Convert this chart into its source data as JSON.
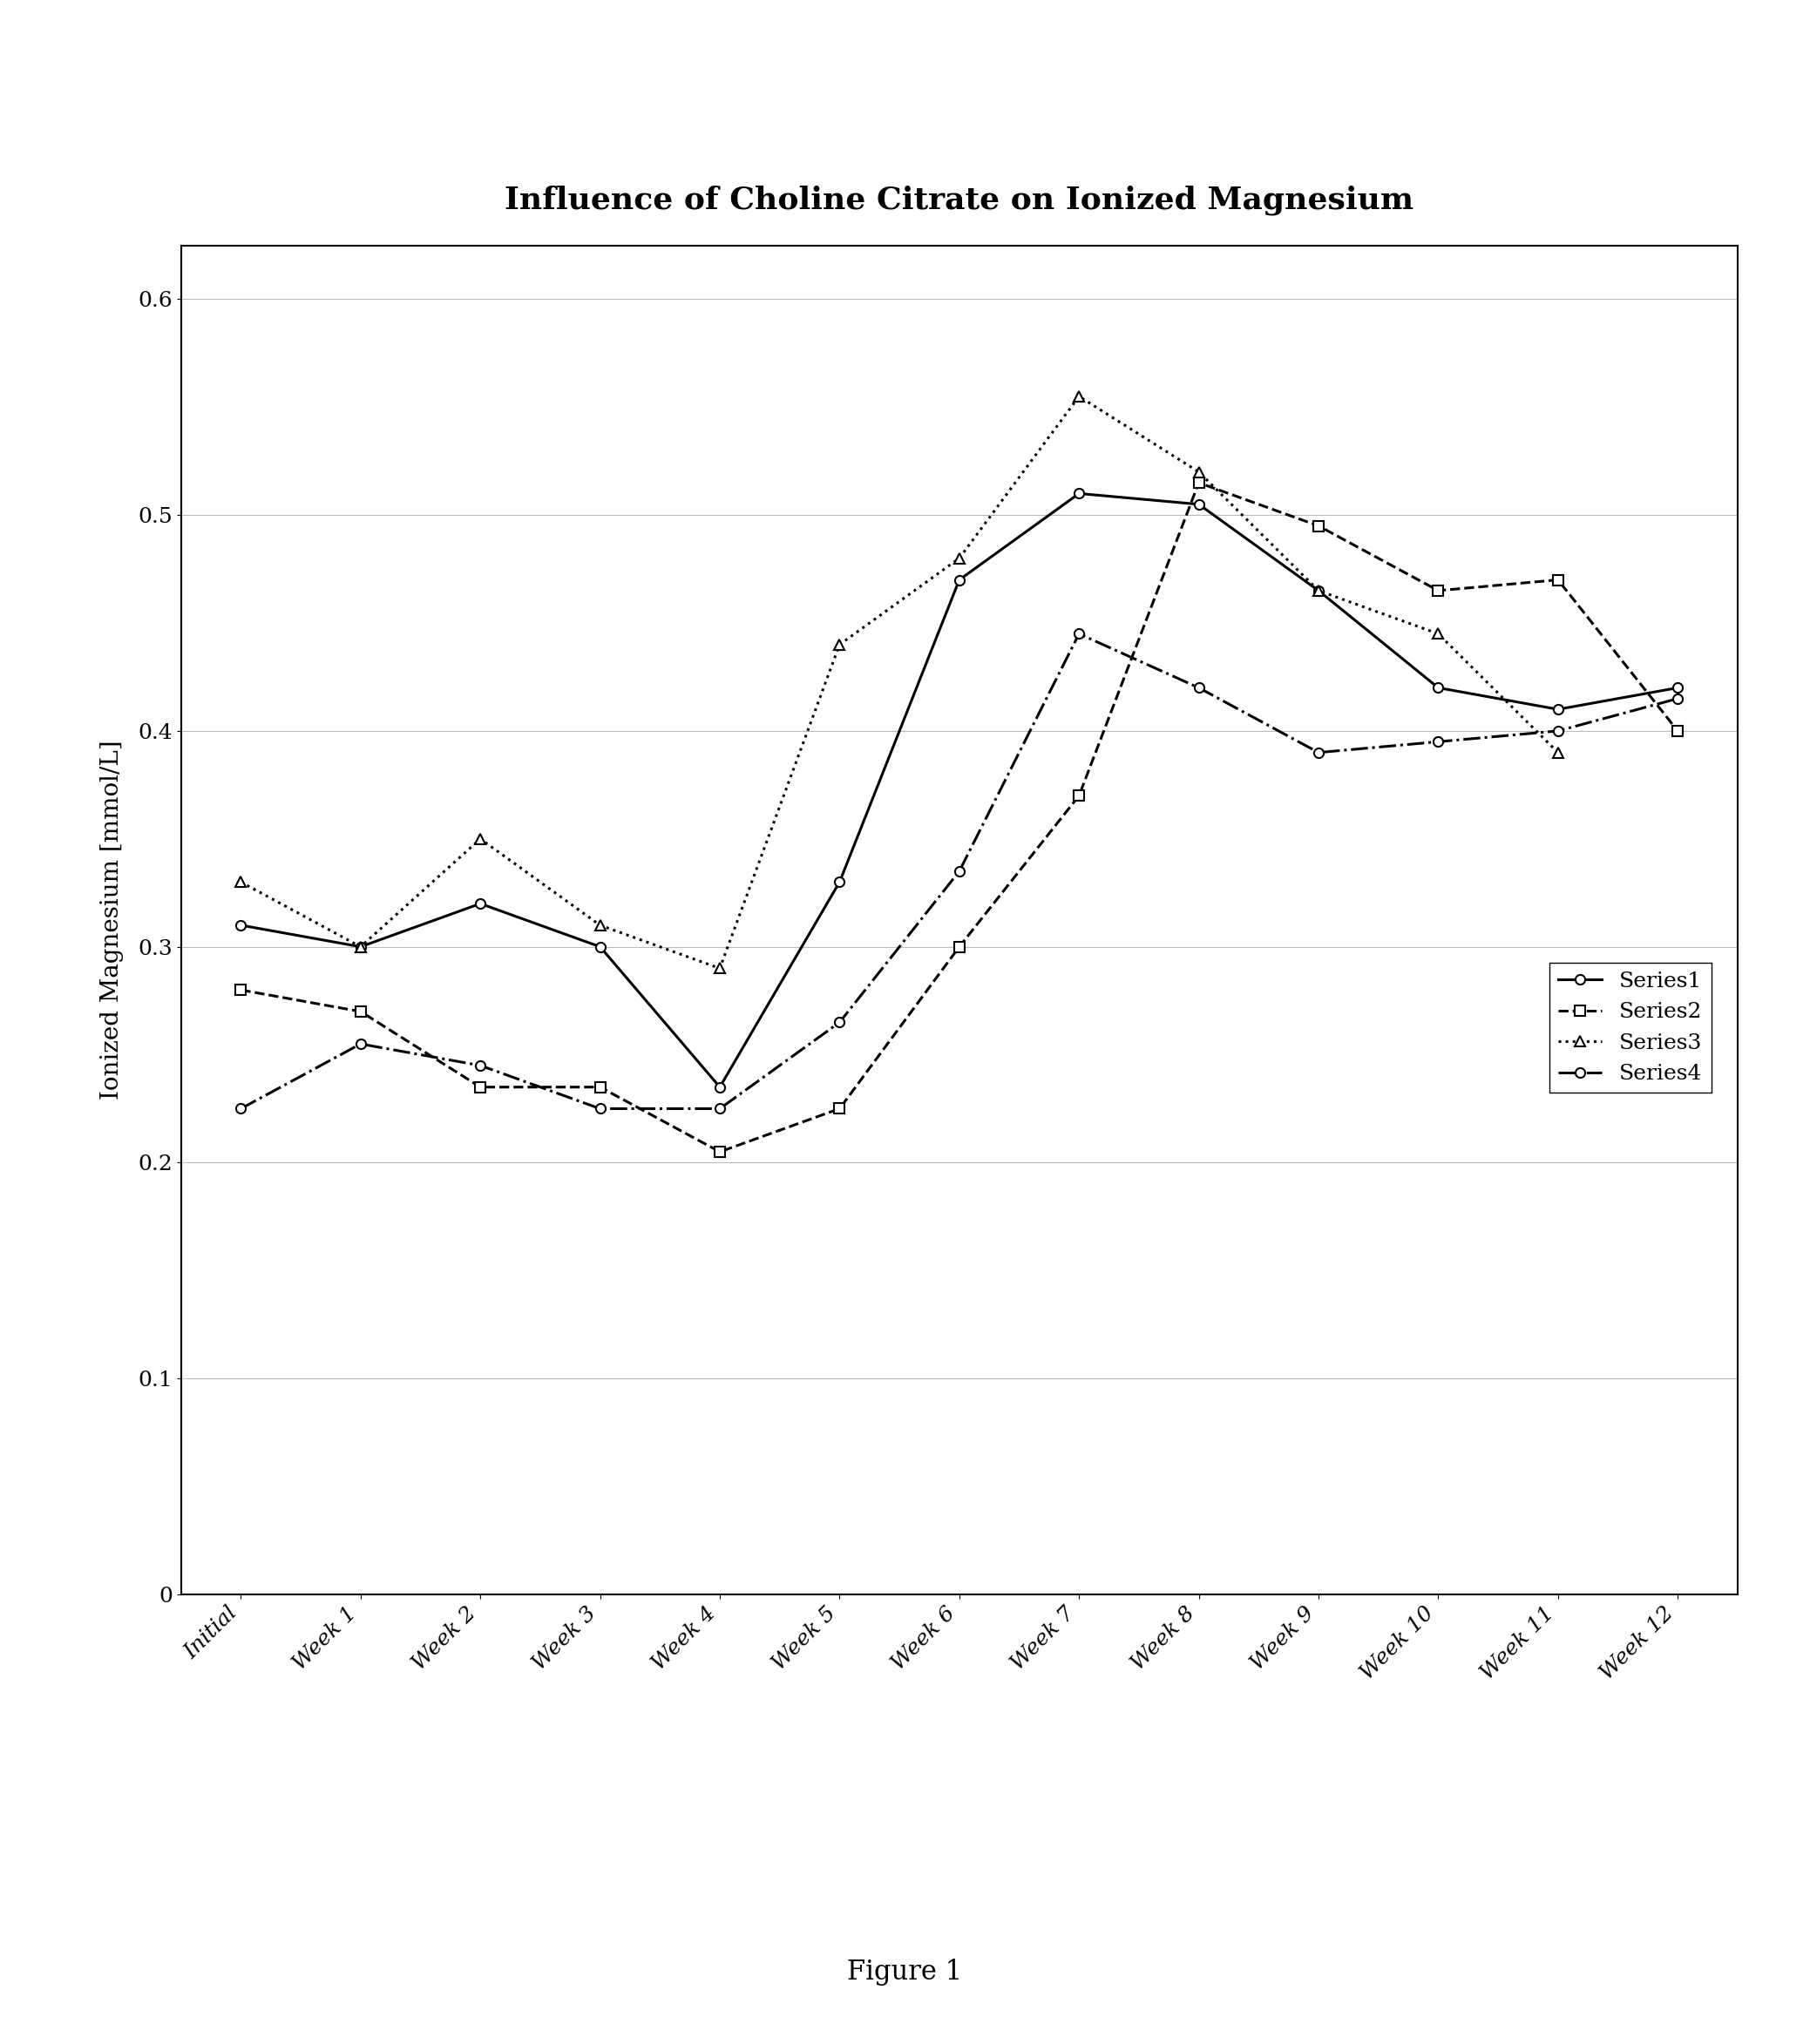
{
  "title": "Influence of Choline Citrate on Ionized Magnesium",
  "ylabel": "Ionized Magnesium [mmol/L]",
  "figure_caption": "Figure 1",
  "x_labels": [
    "Initial",
    "Week 1",
    "Week 2",
    "Week 3",
    "Week 4",
    "Week 5",
    "Week 6",
    "Week 7",
    "Week 8",
    "Week 9",
    "Week 10",
    "Week 11",
    "Week 12"
  ],
  "series1": {
    "label": "Series1",
    "values": [
      0.31,
      0.3,
      0.32,
      0.3,
      0.235,
      0.33,
      0.47,
      0.51,
      0.505,
      0.465,
      0.42,
      0.41,
      0.42
    ],
    "linestyle": "-",
    "marker": "o",
    "linewidth": 2.2,
    "markersize": 8
  },
  "series2": {
    "label": "Series2",
    "values": [
      0.28,
      0.27,
      0.235,
      0.235,
      0.205,
      0.225,
      0.3,
      0.37,
      0.515,
      0.495,
      0.465,
      0.47,
      0.4
    ],
    "linestyle": "--",
    "marker": "s",
    "linewidth": 2.2,
    "markersize": 8
  },
  "series3": {
    "label": "Series3",
    "values": [
      0.33,
      0.3,
      0.35,
      0.31,
      0.29,
      0.44,
      0.48,
      0.555,
      0.52,
      0.465,
      0.445,
      0.39,
      null
    ],
    "linestyle": ":",
    "marker": "^",
    "linewidth": 2.2,
    "markersize": 8
  },
  "series4": {
    "label": "Series4",
    "values": [
      0.225,
      0.255,
      0.245,
      0.225,
      0.225,
      0.265,
      0.335,
      0.445,
      0.42,
      0.39,
      0.395,
      0.4,
      0.415
    ],
    "linestyle": "-.",
    "marker": "o",
    "linewidth": 2.2,
    "markersize": 8
  },
  "ylim": [
    0,
    0.625
  ],
  "yticks": [
    0,
    0.1,
    0.2,
    0.3,
    0.4,
    0.5,
    0.6
  ],
  "ytick_labels": [
    "0",
    "0.1",
    "0.2",
    "0.3",
    "0.4",
    "0.5",
    "0.6"
  ],
  "grid_color": "#bbbbbb",
  "background_color": "white",
  "title_fontsize": 26,
  "axis_label_fontsize": 20,
  "tick_fontsize": 18,
  "legend_fontsize": 18,
  "caption_fontsize": 22
}
